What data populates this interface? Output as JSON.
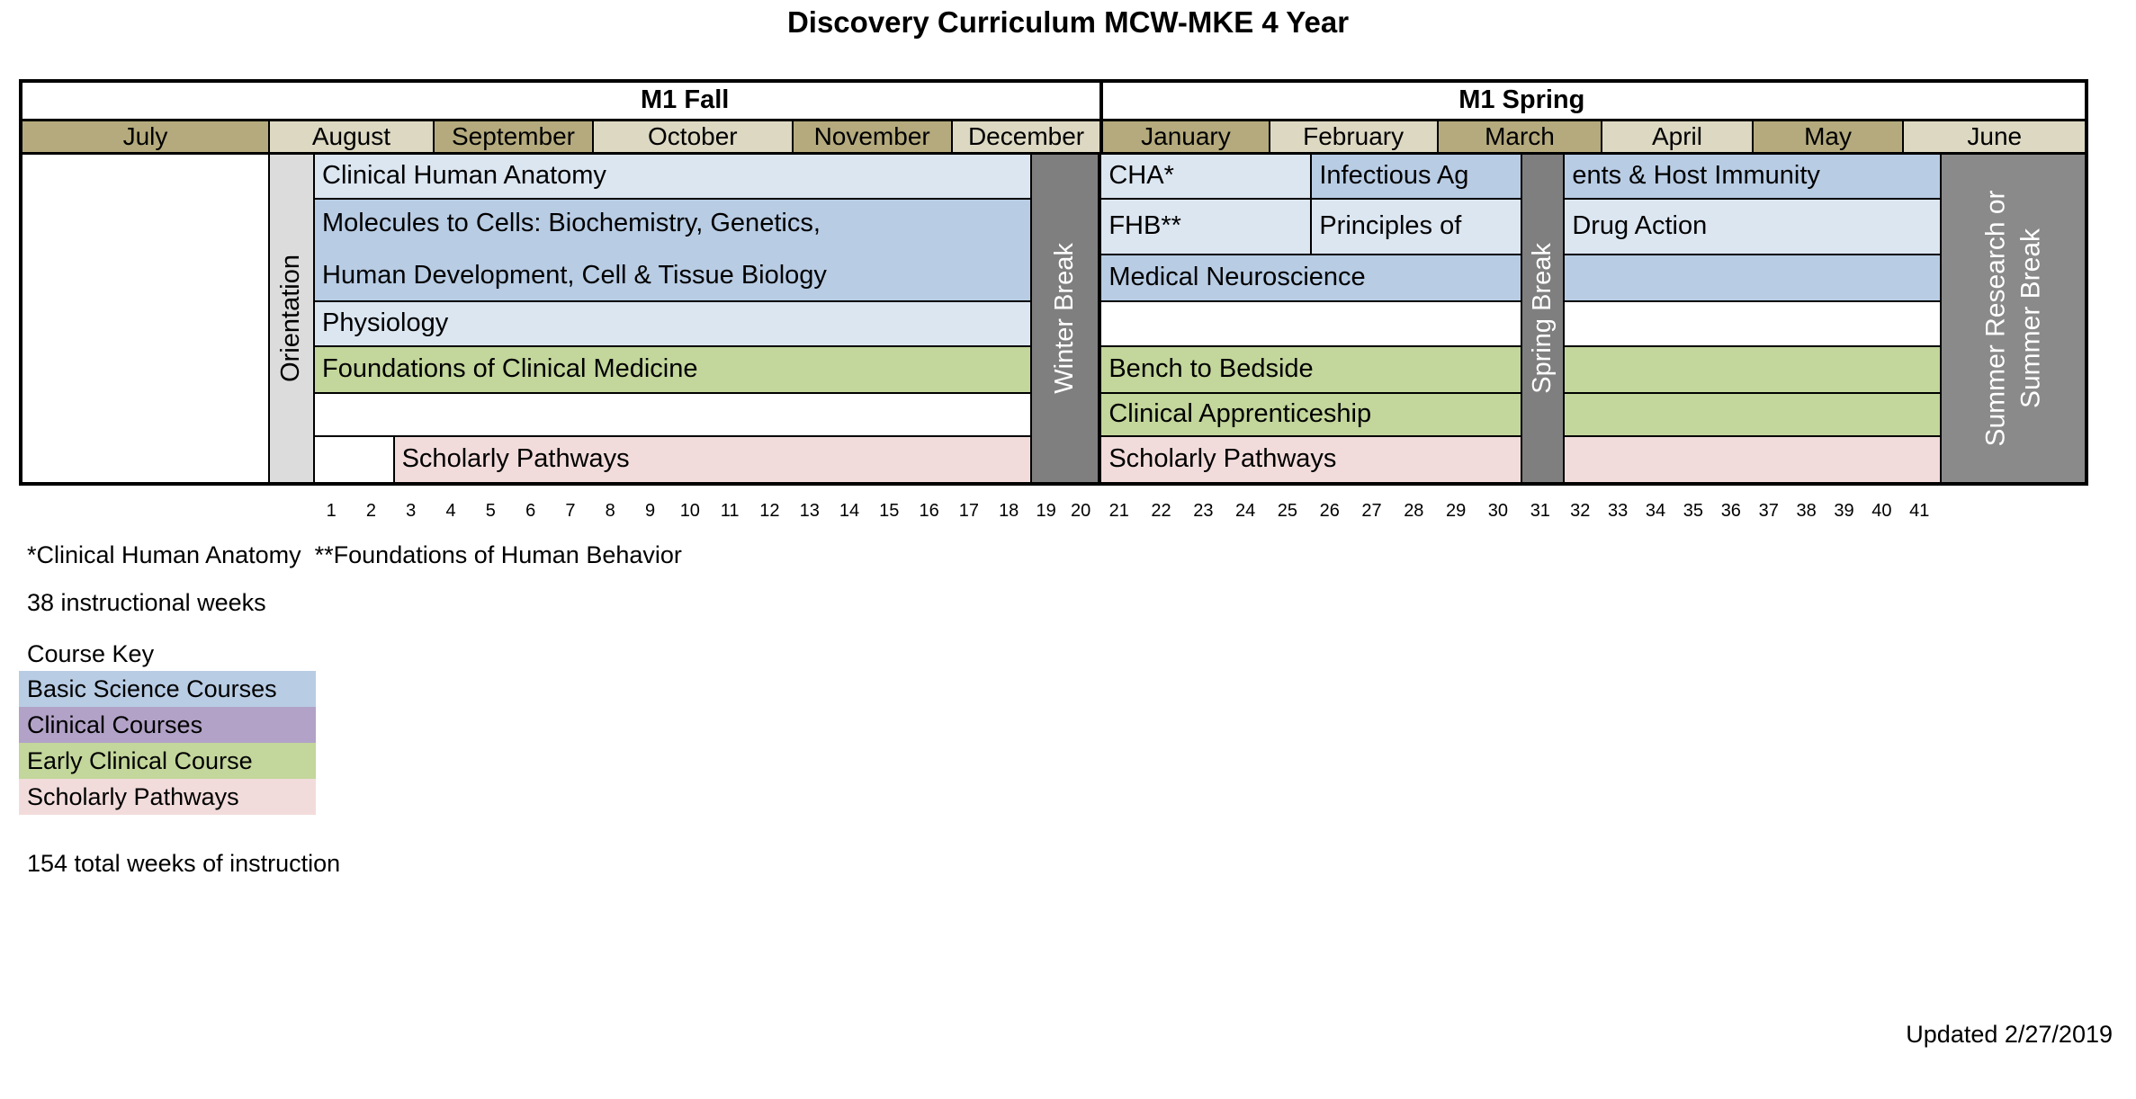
{
  "title": "Discovery Curriculum MCW-MKE 4 Year",
  "semesters": {
    "fall": "M1 Fall",
    "spring": "M1 Spring"
  },
  "months": [
    "July",
    "August",
    "September",
    "October",
    "November",
    "December",
    "January",
    "February",
    "March",
    "April",
    "May",
    "June"
  ],
  "side_labels": {
    "orientation": "Orientation",
    "winter_break": "Winter Break",
    "spring_break": "Spring Break",
    "summer_line1": "Summer Research or",
    "summer_line2": "Summer Break"
  },
  "courses": {
    "fall": {
      "clinical_human_anatomy": "Clinical Human Anatomy",
      "molecules_line1": "Molecules to Cells: Biochemistry, Genetics,",
      "molecules_line2": "Human Development, Cell & Tissue Biology",
      "physiology": "Physiology",
      "foundations_clinical_medicine": "Foundations of Clinical Medicine",
      "scholarly_pathways": "Scholarly Pathways"
    },
    "spring": {
      "cha": "CHA*",
      "infectious_part1": "Infectious Ag",
      "infectious_part2": "ents & Host Immunity",
      "fhb": "FHB**",
      "principles_part1": "Principles of",
      "principles_part2": "Drug Action",
      "medical_neuroscience": "Medical Neuroscience",
      "bench_to_bedside": "Bench to Bedside",
      "clinical_apprenticeship": "Clinical Apprenticeship",
      "scholarly_pathways": "Scholarly Pathways"
    }
  },
  "weeks": {
    "fall": [
      "1",
      "2",
      "3",
      "4",
      "5",
      "6",
      "7",
      "8",
      "9",
      "10",
      "11",
      "12",
      "13",
      "14",
      "15",
      "16",
      "17",
      "18"
    ],
    "winter_break": [
      "19",
      "20"
    ],
    "spring_early": [
      "21",
      "22",
      "23",
      "24",
      "25",
      "26",
      "27",
      "28",
      "29",
      "30"
    ],
    "spring_break": "31",
    "spring_late": [
      "32",
      "33",
      "34",
      "35",
      "36",
      "37",
      "38",
      "39",
      "40",
      "41"
    ]
  },
  "notes": {
    "abbreviations": "*Clinical Human Anatomy  **Foundations of Human Behavior",
    "instructional_weeks": "38 instructional weeks",
    "total_weeks": "154 total weeks of instruction",
    "updated": "Updated 2/27/2019"
  },
  "course_key": {
    "title": "Course Key",
    "items": [
      {
        "label": "Basic Science Courses",
        "color": "#b8cce4"
      },
      {
        "label": "Clinical Courses",
        "color": "#b2a2c7"
      },
      {
        "label": "Early Clinical Course",
        "color": "#c3d69b"
      },
      {
        "label": "Scholarly Pathways",
        "color": "#f2dcdb"
      }
    ]
  },
  "colors": {
    "basic_science_light": "#dce6f1",
    "basic_science_medium": "#b8cce4",
    "clinical": "#b2a2c7",
    "early_clinical": "#c3d69b",
    "scholarly_pathways": "#f2dcdb",
    "month_dark": "#b4aa7d",
    "month_light": "#ddd8c2",
    "orientation_gray": "#dcdcdc",
    "break_gray": "#7f7f7f",
    "summer_gray": "#8a8a8a"
  }
}
